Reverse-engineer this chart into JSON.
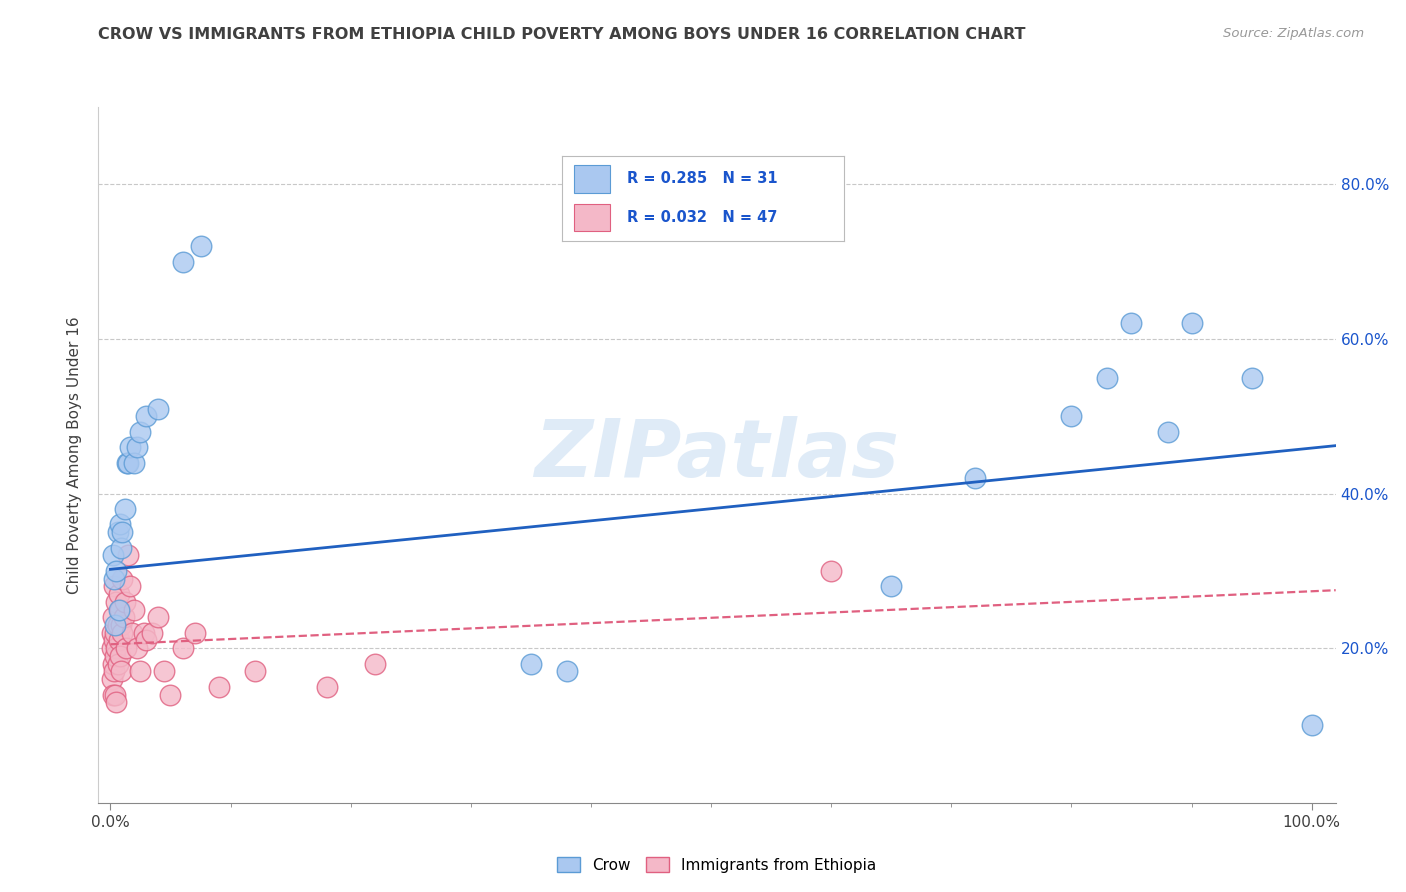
{
  "title": "CROW VS IMMIGRANTS FROM ETHIOPIA CHILD POVERTY AMONG BOYS UNDER 16 CORRELATION CHART",
  "source": "Source: ZipAtlas.com",
  "ylabel": "Child Poverty Among Boys Under 16",
  "watermark": "ZIPatlas",
  "crow_R": "0.285",
  "crow_N": "31",
  "ethiopia_R": "0.032",
  "ethiopia_N": "47",
  "crow_color": "#aac8f0",
  "crow_edge_color": "#5b9bd5",
  "ethiopia_color": "#f4b8c8",
  "ethiopia_edge_color": "#e06080",
  "crow_line_color": "#2060c0",
  "ethiopia_line_color": "#e06080",
  "background_color": "#ffffff",
  "grid_color": "#c8c8c8",
  "title_color": "#404040",
  "legend_text_color": "#1a55cc",
  "crow_x": [
    0.002,
    0.003,
    0.004,
    0.005,
    0.006,
    0.007,
    0.008,
    0.009,
    0.01,
    0.012,
    0.014,
    0.015,
    0.016,
    0.02,
    0.022,
    0.025,
    0.03,
    0.04,
    0.06,
    0.075,
    0.35,
    0.38,
    0.65,
    0.72,
    0.8,
    0.83,
    0.85,
    0.88,
    0.9,
    0.95,
    1.0
  ],
  "crow_y": [
    0.32,
    0.29,
    0.23,
    0.3,
    0.35,
    0.25,
    0.36,
    0.33,
    0.35,
    0.38,
    0.44,
    0.44,
    0.46,
    0.44,
    0.46,
    0.48,
    0.5,
    0.51,
    0.7,
    0.72,
    0.18,
    0.17,
    0.28,
    0.42,
    0.5,
    0.55,
    0.62,
    0.48,
    0.62,
    0.55,
    0.1
  ],
  "ethiopia_x": [
    0.001,
    0.001,
    0.001,
    0.002,
    0.002,
    0.002,
    0.003,
    0.003,
    0.003,
    0.004,
    0.004,
    0.004,
    0.005,
    0.005,
    0.005,
    0.006,
    0.006,
    0.007,
    0.007,
    0.008,
    0.008,
    0.009,
    0.009,
    0.01,
    0.01,
    0.011,
    0.012,
    0.013,
    0.015,
    0.016,
    0.018,
    0.02,
    0.022,
    0.025,
    0.028,
    0.03,
    0.035,
    0.04,
    0.045,
    0.05,
    0.06,
    0.07,
    0.09,
    0.12,
    0.18,
    0.22,
    0.6
  ],
  "ethiopia_y": [
    0.2,
    0.16,
    0.22,
    0.18,
    0.24,
    0.14,
    0.21,
    0.17,
    0.28,
    0.14,
    0.22,
    0.19,
    0.26,
    0.2,
    0.13,
    0.23,
    0.18,
    0.27,
    0.21,
    0.25,
    0.19,
    0.23,
    0.17,
    0.29,
    0.22,
    0.24,
    0.26,
    0.2,
    0.32,
    0.28,
    0.22,
    0.25,
    0.2,
    0.17,
    0.22,
    0.21,
    0.22,
    0.24,
    0.17,
    0.14,
    0.2,
    0.22,
    0.15,
    0.17,
    0.15,
    0.18,
    0.3
  ],
  "xlim": [
    -0.01,
    1.02
  ],
  "ylim": [
    0.0,
    0.9
  ],
  "ytick_positions": [
    0.2,
    0.4,
    0.6,
    0.8
  ],
  "ytick_labels": [
    "20.0%",
    "40.0%",
    "60.0%",
    "80.0%"
  ],
  "xtick_minor_positions": [
    0.1,
    0.2,
    0.3,
    0.4,
    0.5,
    0.6,
    0.7,
    0.8,
    0.9
  ],
  "xtick_major_labels_x": [
    0.0,
    1.0
  ],
  "xtick_major_labels": [
    "0.0%",
    "100.0%"
  ]
}
